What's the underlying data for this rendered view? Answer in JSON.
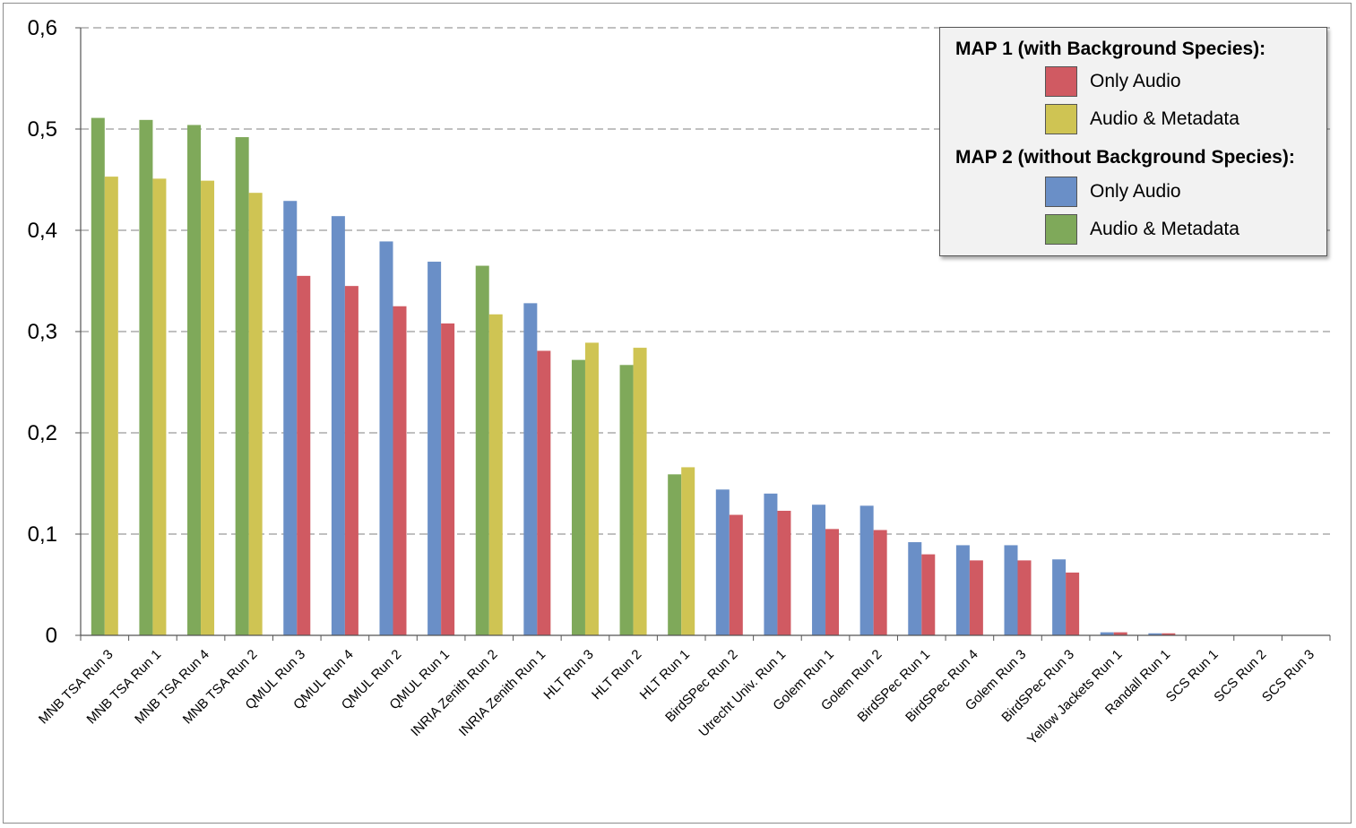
{
  "colors": {
    "map1_only_audio": "#d05a62",
    "map1_audio_metadata": "#cfc453",
    "map2_only_audio": "#6a8fc7",
    "map2_audio_metadata": "#7fa95a",
    "grid": "#9a9a9a"
  },
  "legend": {
    "map1_title": "MAP 1 (with Background Species):",
    "map1_items": [
      "Only Audio",
      "Audio & Metadata"
    ],
    "map2_title": "MAP 2 (without Background Species):",
    "map2_items": [
      "Only Audio",
      "Audio & Metadata"
    ]
  },
  "chart_data": {
    "type": "bar",
    "title": "",
    "xlabel": "",
    "ylabel": "",
    "ylim": [
      0,
      0.6
    ],
    "yticks": [
      "0",
      "0,1",
      "0,2",
      "0,3",
      "0,4",
      "0,5",
      "0,6"
    ],
    "grid": true,
    "legend_position": "top-right",
    "categories": [
      "MNB TSA Run 3",
      "MNB TSA Run 1",
      "MNB TSA Run 4",
      "MNB TSA Run 2",
      "QMUL Run 3",
      "QMUL Run 4",
      "QMUL Run 2",
      "QMUL Run 1",
      "INRIA Zenith Run 2",
      "INRIA Zenith Run 1",
      "HLT Run 3",
      "HLT Run 2",
      "HLT Run 1",
      "BirdSPec Run 2",
      "Utrecht Univ. Run 1",
      "Golem Run 1",
      "Golem Run 2",
      "BirdSPec Run 1",
      "BirdSPec Run 4",
      "Golem Run 3",
      "BirdSPec Run 3",
      "Yellow Jackets Run 1",
      "Randall Run 1",
      "SCS Run 1",
      "SCS Run 2",
      "SCS Run 3"
    ],
    "bars": [
      {
        "map2": 0.511,
        "map2_type": "audio_metadata",
        "map1": 0.453,
        "map1_type": "audio_metadata"
      },
      {
        "map2": 0.509,
        "map2_type": "audio_metadata",
        "map1": 0.451,
        "map1_type": "audio_metadata"
      },
      {
        "map2": 0.504,
        "map2_type": "audio_metadata",
        "map1": 0.449,
        "map1_type": "audio_metadata"
      },
      {
        "map2": 0.492,
        "map2_type": "audio_metadata",
        "map1": 0.437,
        "map1_type": "audio_metadata"
      },
      {
        "map2": 0.429,
        "map2_type": "only_audio",
        "map1": 0.355,
        "map1_type": "only_audio"
      },
      {
        "map2": 0.414,
        "map2_type": "only_audio",
        "map1": 0.345,
        "map1_type": "only_audio"
      },
      {
        "map2": 0.389,
        "map2_type": "only_audio",
        "map1": 0.325,
        "map1_type": "only_audio"
      },
      {
        "map2": 0.369,
        "map2_type": "only_audio",
        "map1": 0.308,
        "map1_type": "only_audio"
      },
      {
        "map2": 0.365,
        "map2_type": "audio_metadata",
        "map1": 0.317,
        "map1_type": "audio_metadata"
      },
      {
        "map2": 0.328,
        "map2_type": "only_audio",
        "map1": 0.281,
        "map1_type": "only_audio"
      },
      {
        "map2": 0.272,
        "map2_type": "audio_metadata",
        "map1": 0.289,
        "map1_type": "audio_metadata"
      },
      {
        "map2": 0.267,
        "map2_type": "audio_metadata",
        "map1": 0.284,
        "map1_type": "audio_metadata"
      },
      {
        "map2": 0.159,
        "map2_type": "audio_metadata",
        "map1": 0.166,
        "map1_type": "audio_metadata"
      },
      {
        "map2": 0.144,
        "map2_type": "only_audio",
        "map1": 0.119,
        "map1_type": "only_audio"
      },
      {
        "map2": 0.14,
        "map2_type": "only_audio",
        "map1": 0.123,
        "map1_type": "only_audio"
      },
      {
        "map2": 0.129,
        "map2_type": "only_audio",
        "map1": 0.105,
        "map1_type": "only_audio"
      },
      {
        "map2": 0.128,
        "map2_type": "only_audio",
        "map1": 0.104,
        "map1_type": "only_audio"
      },
      {
        "map2": 0.092,
        "map2_type": "only_audio",
        "map1": 0.08,
        "map1_type": "only_audio"
      },
      {
        "map2": 0.089,
        "map2_type": "only_audio",
        "map1": 0.074,
        "map1_type": "only_audio"
      },
      {
        "map2": 0.089,
        "map2_type": "only_audio",
        "map1": 0.074,
        "map1_type": "only_audio"
      },
      {
        "map2": 0.075,
        "map2_type": "only_audio",
        "map1": 0.062,
        "map1_type": "only_audio"
      },
      {
        "map2": 0.003,
        "map2_type": "only_audio",
        "map1": 0.003,
        "map1_type": "only_audio"
      },
      {
        "map2": 0.002,
        "map2_type": "only_audio",
        "map1": 0.002,
        "map1_type": "only_audio"
      },
      {
        "map2": 0,
        "map2_type": "only_audio",
        "map1": 0,
        "map1_type": "only_audio"
      },
      {
        "map2": 0,
        "map2_type": "only_audio",
        "map1": 0,
        "map1_type": "only_audio"
      },
      {
        "map2": 0,
        "map2_type": "only_audio",
        "map1": 0,
        "map1_type": "only_audio"
      }
    ]
  }
}
